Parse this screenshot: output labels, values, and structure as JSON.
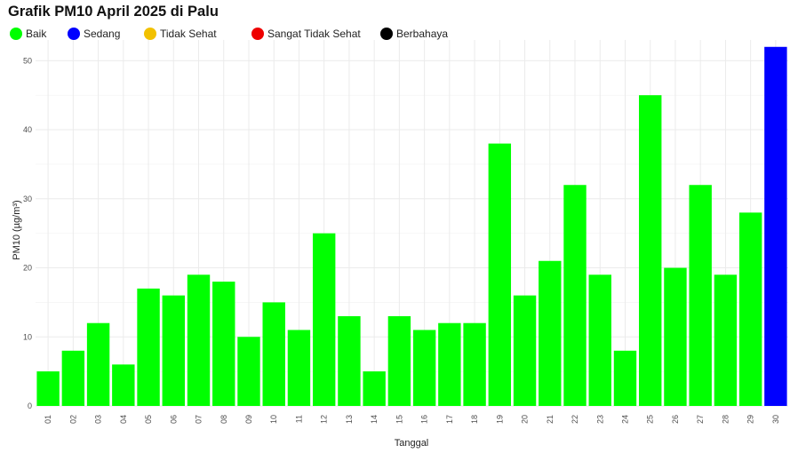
{
  "title": "Grafik PM10 April 2025 di Palu",
  "legend": [
    {
      "label": "Baik",
      "color": "#00FF00"
    },
    {
      "label": "Sedang",
      "color": "#0000FF"
    },
    {
      "label": "Tidak Sehat",
      "color": "#F2C100"
    },
    {
      "label": "Sangat Tidak Sehat",
      "color": "#EE0000"
    },
    {
      "label": "Berbahaya",
      "color": "#000000"
    }
  ],
  "chart_data": {
    "type": "bar",
    "title": "Grafik PM10 April 2025 di Palu",
    "xlabel": "Tanggal",
    "ylabel": "PM10 (µg/m³)",
    "ylim": [
      0,
      53
    ],
    "yticks": [
      0,
      10,
      20,
      30,
      40,
      50
    ],
    "grid": true,
    "legend_position": "top",
    "categories": [
      "01",
      "02",
      "03",
      "04",
      "05",
      "06",
      "07",
      "08",
      "09",
      "10",
      "11",
      "12",
      "13",
      "14",
      "15",
      "16",
      "17",
      "18",
      "19",
      "20",
      "21",
      "22",
      "23",
      "24",
      "25",
      "26",
      "27",
      "28",
      "29",
      "30"
    ],
    "values": [
      5,
      8,
      12,
      6,
      17,
      16,
      19,
      18,
      10,
      15,
      11,
      25,
      13,
      5,
      13,
      11,
      12,
      12,
      38,
      16,
      21,
      32,
      19,
      8,
      45,
      20,
      32,
      19,
      28,
      52
    ],
    "bar_colors": [
      "#00FF00",
      "#00FF00",
      "#00FF00",
      "#00FF00",
      "#00FF00",
      "#00FF00",
      "#00FF00",
      "#00FF00",
      "#00FF00",
      "#00FF00",
      "#00FF00",
      "#00FF00",
      "#00FF00",
      "#00FF00",
      "#00FF00",
      "#00FF00",
      "#00FF00",
      "#00FF00",
      "#00FF00",
      "#00FF00",
      "#00FF00",
      "#00FF00",
      "#00FF00",
      "#00FF00",
      "#00FF00",
      "#00FF00",
      "#00FF00",
      "#00FF00",
      "#00FF00",
      "#0000FF"
    ]
  }
}
